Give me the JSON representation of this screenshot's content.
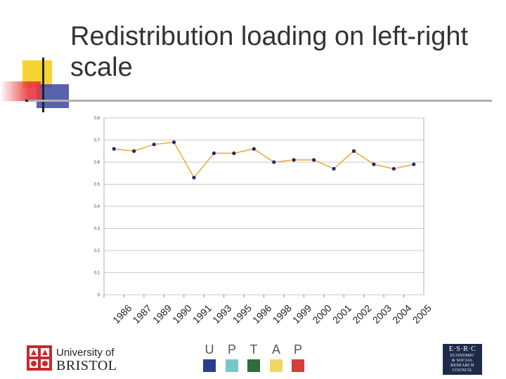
{
  "slide": {
    "title": "Redistribution loading on left-right scale"
  },
  "chart_data": {
    "type": "line",
    "x": [
      "1986",
      "1987",
      "1989",
      "1990",
      "1991",
      "1993",
      "1995",
      "1996",
      "1998",
      "1999",
      "2000",
      "2001",
      "2002",
      "2003",
      "2004",
      "2005"
    ],
    "values": [
      0.66,
      0.65,
      0.68,
      0.69,
      0.53,
      0.64,
      0.64,
      0.66,
      0.6,
      0.61,
      0.61,
      0.57,
      0.65,
      0.59,
      0.57,
      0.59
    ],
    "ylim": [
      0,
      0.8
    ],
    "yticks": [
      "0",
      "0.1",
      "0.2",
      "0.3",
      "0.4",
      "0.5",
      "0.6",
      "0.7",
      "0.8"
    ],
    "grid": true,
    "line_color": "#f0a830",
    "marker_color": "#1f2a6e",
    "title": "",
    "xlabel": "",
    "ylabel": ""
  },
  "footer": {
    "bristol_line1": "University of",
    "bristol_line2": "BRISTOL",
    "uptap": [
      {
        "letter": "U",
        "color": "#2e3c8c"
      },
      {
        "letter": "P",
        "color": "#78c8c8"
      },
      {
        "letter": "T",
        "color": "#2e6e3c"
      },
      {
        "letter": "A",
        "color": "#f0d860"
      },
      {
        "letter": "P",
        "color": "#d83c3c"
      }
    ],
    "esrc_top": "E·S·R·C",
    "esrc_lines": [
      "ECONOMIC",
      "& SOCIAL",
      "RESEARCH",
      "COUNCIL"
    ]
  },
  "decoration_colors": {
    "yellow": "#f5d432",
    "blue": "#3c46a0",
    "red": "#e8383c"
  }
}
